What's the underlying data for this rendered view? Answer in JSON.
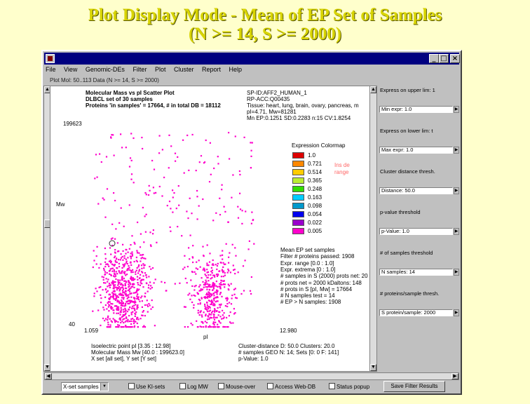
{
  "slide": {
    "title_line1": "Plot Display Mode - Mean of EP Set of Samples",
    "title_line2": "(N >= 14, S >= 2000)"
  },
  "window": {
    "minimize": "_",
    "maximize": "□",
    "close": "×",
    "menu": [
      "File",
      "View",
      "Genomic-DEs",
      "Filter",
      "Plot",
      "Cluster",
      "Report",
      "Help"
    ],
    "subtitle": "Plot Mol: 50..113 Data (N >= 14, S >= 2000)"
  },
  "plot": {
    "title_lines": [
      "Molecular Mass vs pI Scatter Plot",
      "DLBCL set of 30 samples",
      "Proteins 'in samples' = 17664, # in total DB = 18112"
    ],
    "y_max_label": "199623",
    "y_axis_label": "Mw",
    "y_min_label": "40",
    "x_min_label": "1.059",
    "x_max_label": "12.980",
    "x_axis_label": "pI",
    "protein_info": [
      "SP-ID:AFF2_HUMAN_1",
      "RP-ACC:Q00435",
      "Tissue: heart, lung, brain, ovary, pancreas, m",
      "pI=4.71, Mw=81281",
      "Mn EP:0.1251 SD:0.2283 n:15 CV:1.8254"
    ],
    "colormap_title": "Expression Colormap",
    "colormap_note": [
      "Ins de",
      "range"
    ],
    "colormap": [
      {
        "value": "1.0",
        "color": "#dd0000"
      },
      {
        "value": "0.721",
        "color": "#ff8800"
      },
      {
        "value": "0.514",
        "color": "#ffcc00"
      },
      {
        "value": "0.365",
        "color": "#bbee33"
      },
      {
        "value": "0.248",
        "color": "#33dd00"
      },
      {
        "value": "0.163",
        "color": "#00ccff"
      },
      {
        "value": "0.098",
        "color": "#0099cc"
      },
      {
        "value": "0.054",
        "color": "#0000ee"
      },
      {
        "value": "0.022",
        "color": "#9900cc"
      },
      {
        "value": "0.005",
        "color": "#ff00cc"
      }
    ],
    "stats_lines": [
      "Mean EP set samples",
      "Filter # proteins passed: 1908",
      "Expr. range [0.0 : 1.0]",
      "Expr. extrema [0 : 1.0]",
      "# samples in S (2000) prots net: 20",
      "# prots net = 2000 kDaltons: 148",
      "# prots in S [pI, Mw] = 17664",
      "# N samples test = 14",
      "# EP > N samples: 1908"
    ],
    "footer_left": [
      "Isoelectric point pI [3.35 : 12.98]",
      "Molecular Mass Mw [40.0 : 199623.0]",
      "X set [all set], Y set [Y set]"
    ],
    "footer_right": [
      "Cluster-distance D: 50.0  Clusters: 20.0",
      "# samples GEO N: 14; Sets [0: 0 F: 141]",
      "p-Value: 1.0"
    ],
    "point_color": "#ff00cc"
  },
  "right_panel": {
    "items": [
      {
        "label": "Express on upper lim: 1",
        "field": "Min expr: 1.0"
      },
      {
        "label": "Express on lower lim: t",
        "field": "Max expr: 1.0"
      },
      {
        "label": "Cluster distance thresh.",
        "field": "Distance: 50.0"
      },
      {
        "label": "p-value threshold",
        "field": "p-Value: 1.0"
      },
      {
        "label": "# of samples threshold",
        "field": "N samples: 14"
      },
      {
        "label": "# proteins/sample thresh.",
        "field": "S protein/sample: 2000"
      }
    ]
  },
  "toolbar": {
    "select_value": "X-set samples",
    "checkboxes": [
      "Use KI-sets",
      "Log MW",
      "Mouse-over",
      "Access Web-DB",
      "Status popup"
    ],
    "save_label": "Save Filter Results"
  }
}
